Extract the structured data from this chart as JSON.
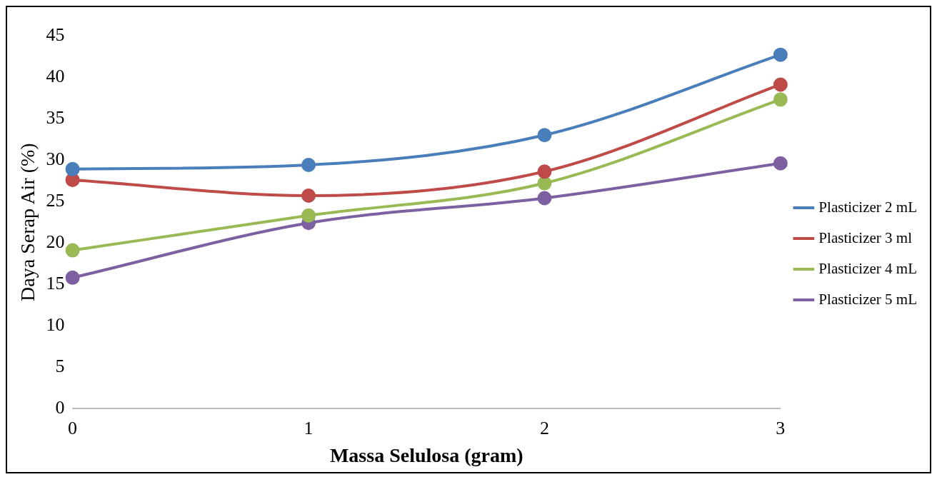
{
  "chart_data": {
    "type": "line",
    "xlabel": "Massa Selulosa (gram)",
    "ylabel": "Daya Serap Air (%)",
    "x": [
      0,
      1,
      2,
      3
    ],
    "xlim": [
      0,
      3
    ],
    "xticks": [
      0,
      1,
      2,
      3
    ],
    "ylim": [
      0,
      45
    ],
    "yticks": [
      0,
      5,
      10,
      15,
      20,
      25,
      30,
      35,
      40,
      45
    ],
    "grid": false,
    "legend": "right",
    "marker": "circle",
    "line_style": "solid",
    "series": [
      {
        "name": "Plasticizer 2 mL",
        "color": "#4a7ebb",
        "values": [
          28.9,
          29.4,
          33.0,
          42.7
        ]
      },
      {
        "name": "Plasticizer 3 ml",
        "color": "#be4b48",
        "values": [
          27.6,
          25.7,
          28.6,
          39.1
        ]
      },
      {
        "name": "Plasticizer 4 mL",
        "color": "#98b954",
        "values": [
          19.1,
          23.3,
          27.2,
          37.3
        ]
      },
      {
        "name": "Plasticizer 5 mL",
        "color": "#7d60a0",
        "values": [
          15.8,
          22.4,
          25.4,
          29.6
        ]
      }
    ]
  }
}
